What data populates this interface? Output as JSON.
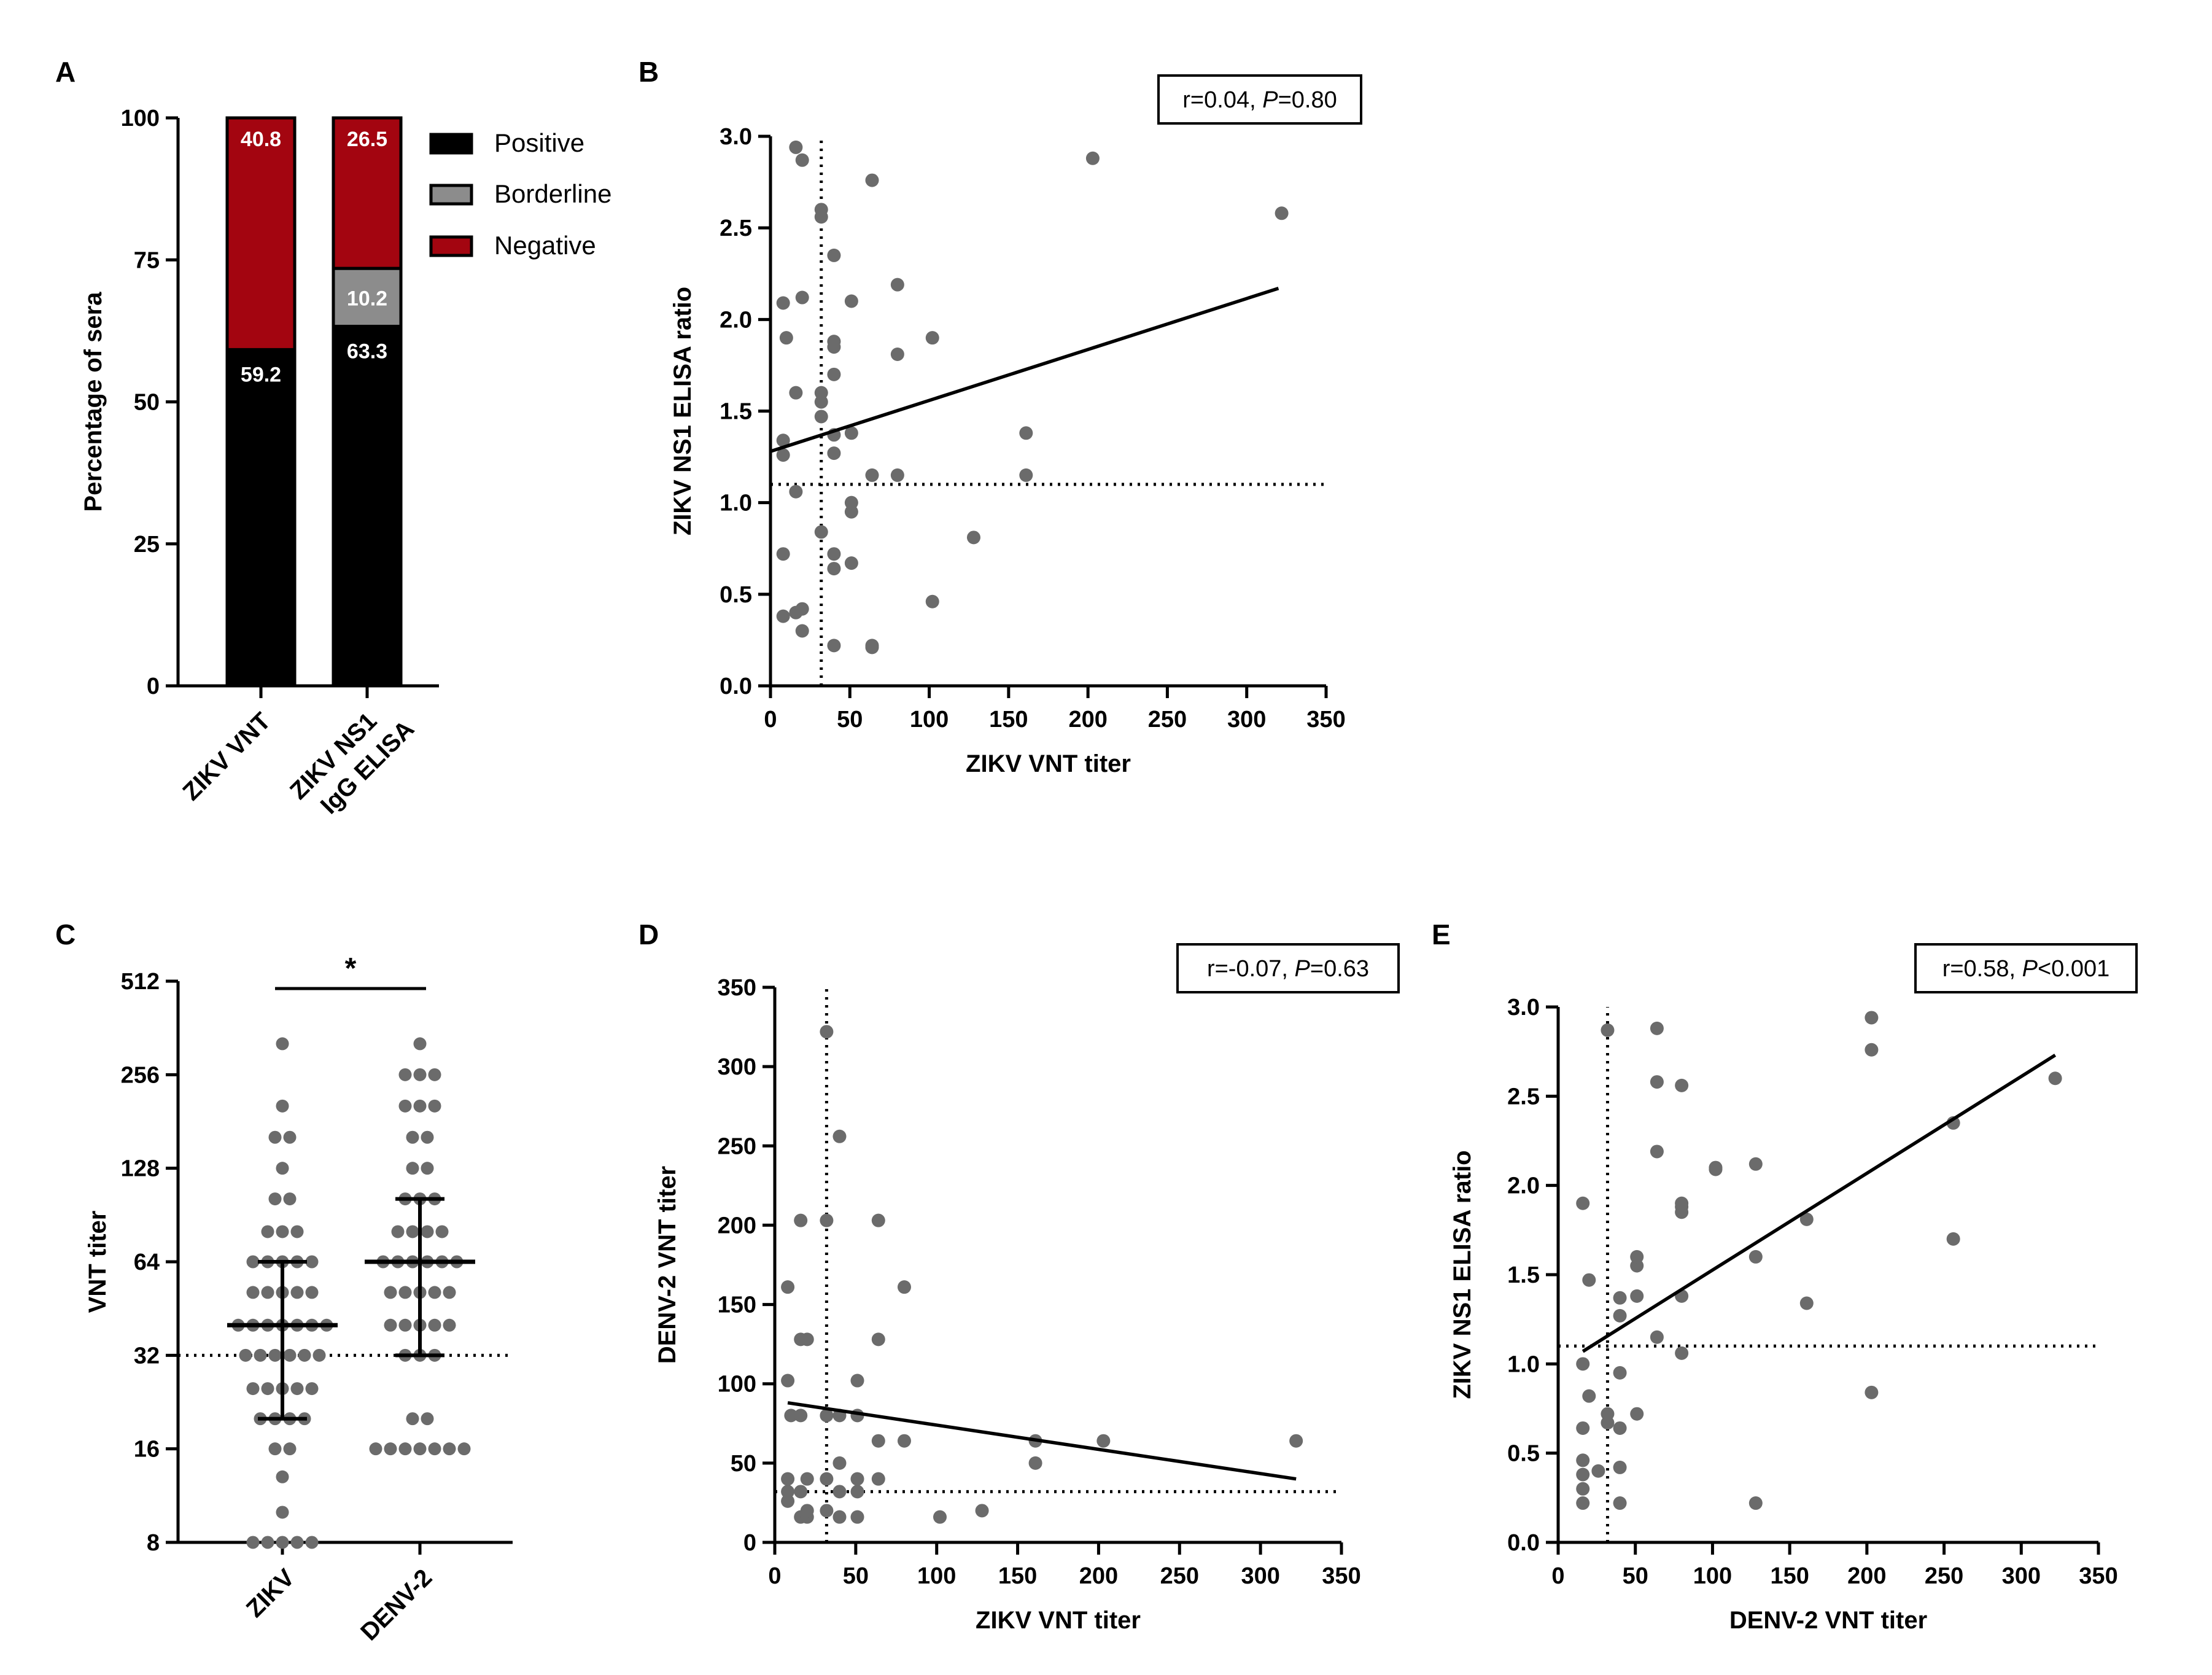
{
  "colors": {
    "positive": "#000000",
    "borderline": "#8c8c8c",
    "negative": "#a30510",
    "point": "#6b6b6b",
    "line": "#000000"
  },
  "chart_data": [
    {
      "panel": "A",
      "type": "bar",
      "stacked": true,
      "categories": [
        "ZIKV VNT",
        "ZIKV NS1 IgG ELISA"
      ],
      "category_lines": [
        [
          "ZIKV VNT"
        ],
        [
          "ZIKV NS1",
          "IgG ELISA"
        ]
      ],
      "series": [
        {
          "name": "Positive",
          "color_key": "positive",
          "values": [
            59.2,
            63.3
          ],
          "labels": [
            "59.2",
            "63.3"
          ]
        },
        {
          "name": "Borderline",
          "color_key": "borderline",
          "values": [
            0,
            10.2
          ],
          "labels": [
            "",
            "10.2"
          ]
        },
        {
          "name": "Negative",
          "color_key": "negative",
          "values": [
            40.8,
            26.5
          ],
          "labels": [
            "40.8",
            "26.5"
          ]
        }
      ],
      "ylabel": "Percentage of sera",
      "ylim": [
        0,
        100
      ],
      "yticks": [
        0,
        25,
        50,
        75,
        100
      ],
      "legend": [
        "Positive",
        "Borderline",
        "Negative"
      ]
    },
    {
      "panel": "B",
      "type": "scatter",
      "xlabel": "ZIKV VNT titer",
      "ylabel": "ZIKV NS1 ELISA ratio",
      "xlim": [
        0,
        350
      ],
      "ylim": [
        0,
        3.0
      ],
      "xticks": [
        0,
        50,
        100,
        150,
        200,
        250,
        300,
        350
      ],
      "yticks": [
        "0.0",
        "0.5",
        "1.0",
        "1.5",
        "2.0",
        "2.5",
        "3.0"
      ],
      "stat": {
        "prefix": "r=0.04, ",
        "italic": "P",
        "suffix": "=0.80"
      },
      "regression": [
        [
          0,
          1.28
        ],
        [
          320,
          2.17
        ]
      ],
      "cutoff_x": 32,
      "cutoff_y": 1.1,
      "points": [
        [
          8,
          0.38
        ],
        [
          8,
          0.72
        ],
        [
          8,
          1.26
        ],
        [
          8,
          1.34
        ],
        [
          8,
          2.09
        ],
        [
          10,
          1.9
        ],
        [
          16,
          0.4
        ],
        [
          16,
          1.06
        ],
        [
          16,
          1.6
        ],
        [
          16,
          2.94
        ],
        [
          20,
          0.3
        ],
        [
          20,
          0.42
        ],
        [
          20,
          2.12
        ],
        [
          20,
          2.87
        ],
        [
          32,
          0.84
        ],
        [
          32,
          1.47
        ],
        [
          32,
          1.55
        ],
        [
          32,
          1.6
        ],
        [
          32,
          2.56
        ],
        [
          32,
          2.6
        ],
        [
          40,
          0.22
        ],
        [
          40,
          0.64
        ],
        [
          40,
          0.72
        ],
        [
          40,
          1.27
        ],
        [
          40,
          1.37
        ],
        [
          40,
          1.7
        ],
        [
          40,
          1.85
        ],
        [
          40,
          1.88
        ],
        [
          40,
          2.35
        ],
        [
          51,
          0.67
        ],
        [
          51,
          0.95
        ],
        [
          51,
          1.0
        ],
        [
          51,
          1.38
        ],
        [
          51,
          2.1
        ],
        [
          64,
          0.21
        ],
        [
          64,
          0.22
        ],
        [
          64,
          1.15
        ],
        [
          64,
          2.76
        ],
        [
          80,
          1.15
        ],
        [
          80,
          1.81
        ],
        [
          80,
          2.19
        ],
        [
          102,
          0.46
        ],
        [
          102,
          1.9
        ],
        [
          128,
          0.81
        ],
        [
          161,
          1.15
        ],
        [
          161,
          1.38
        ],
        [
          203,
          2.88
        ],
        [
          322,
          2.58
        ]
      ]
    },
    {
      "panel": "C",
      "type": "scatter",
      "subtype": "dot-plot",
      "categories": [
        "ZIKV",
        "DENV-2"
      ],
      "ylabel": "VNT titer",
      "yscale": "log2",
      "ylim": [
        8,
        512
      ],
      "yticks": [
        "8",
        "16",
        "32",
        "64",
        "128",
        "256",
        "512"
      ],
      "cutoff_y": 32,
      "significance": "*",
      "groups": [
        {
          "name": "ZIKV",
          "median": 40,
          "q1": 20,
          "q3": 64,
          "counts": [
            [
              8,
              5
            ],
            [
              10,
              1
            ],
            [
              13,
              1
            ],
            [
              16,
              2
            ],
            [
              20,
              4
            ],
            [
              25,
              5
            ],
            [
              32,
              6
            ],
            [
              40,
              7
            ],
            [
              51,
              5
            ],
            [
              64,
              5
            ],
            [
              80,
              3
            ],
            [
              102,
              2
            ],
            [
              128,
              1
            ],
            [
              161,
              2
            ],
            [
              203,
              1
            ],
            [
              322,
              1
            ]
          ]
        },
        {
          "name": "DENV-2",
          "median": 64,
          "q1": 32,
          "q3": 102,
          "counts": [
            [
              16,
              7
            ],
            [
              20,
              2
            ],
            [
              32,
              3
            ],
            [
              40,
              5
            ],
            [
              51,
              5
            ],
            [
              64,
              6
            ],
            [
              80,
              4
            ],
            [
              102,
              3
            ],
            [
              128,
              2
            ],
            [
              161,
              2
            ],
            [
              203,
              3
            ],
            [
              256,
              3
            ],
            [
              322,
              1
            ]
          ]
        }
      ]
    },
    {
      "panel": "D",
      "type": "scatter",
      "xlabel": "ZIKV VNT titer",
      "ylabel": "DENV-2 VNT titer",
      "xlim": [
        0,
        350
      ],
      "ylim": [
        0,
        350
      ],
      "xticks": [
        0,
        50,
        100,
        150,
        200,
        250,
        300,
        350
      ],
      "yticks": [
        "0",
        "50",
        "100",
        "150",
        "200",
        "250",
        "300",
        "350"
      ],
      "stat": {
        "prefix": "r=-0.07, ",
        "italic": "P",
        "suffix": "=0.63"
      },
      "regression": [
        [
          8,
          88
        ],
        [
          322,
          40
        ]
      ],
      "cutoff_x": 32,
      "cutoff_y": 32,
      "points": [
        [
          8,
          26
        ],
        [
          8,
          32
        ],
        [
          8,
          40
        ],
        [
          8,
          102
        ],
        [
          8,
          161
        ],
        [
          10,
          80
        ],
        [
          16,
          16
        ],
        [
          16,
          32
        ],
        [
          16,
          80
        ],
        [
          16,
          128
        ],
        [
          16,
          203
        ],
        [
          20,
          16
        ],
        [
          20,
          20
        ],
        [
          20,
          40
        ],
        [
          20,
          128
        ],
        [
          32,
          20
        ],
        [
          32,
          40
        ],
        [
          32,
          80
        ],
        [
          32,
          203
        ],
        [
          32,
          322
        ],
        [
          40,
          16
        ],
        [
          40,
          32
        ],
        [
          40,
          50
        ],
        [
          40,
          80
        ],
        [
          40,
          256
        ],
        [
          51,
          16
        ],
        [
          51,
          32
        ],
        [
          51,
          40
        ],
        [
          51,
          80
        ],
        [
          51,
          102
        ],
        [
          64,
          40
        ],
        [
          64,
          64
        ],
        [
          64,
          128
        ],
        [
          64,
          203
        ],
        [
          80,
          64
        ],
        [
          80,
          161
        ],
        [
          102,
          16
        ],
        [
          128,
          20
        ],
        [
          161,
          50
        ],
        [
          161,
          64
        ],
        [
          203,
          64
        ],
        [
          322,
          64
        ]
      ]
    },
    {
      "panel": "E",
      "type": "scatter",
      "xlabel": "DENV-2 VNT titer",
      "ylabel": "ZIKV NS1 ELISA ratio",
      "xlim": [
        0,
        350
      ],
      "ylim": [
        0,
        3.0
      ],
      "xticks": [
        0,
        50,
        100,
        150,
        200,
        250,
        300,
        350
      ],
      "yticks": [
        "0.0",
        "0.5",
        "1.0",
        "1.5",
        "2.0",
        "2.5",
        "3.0"
      ],
      "stat": {
        "prefix": "r=0.58, ",
        "italic": "P",
        "suffix": "<0.001"
      },
      "regression": [
        [
          16,
          1.07
        ],
        [
          322,
          2.73
        ]
      ],
      "cutoff_x": 32,
      "cutoff_y": 1.1,
      "points": [
        [
          16,
          0.22
        ],
        [
          16,
          0.3
        ],
        [
          16,
          0.38
        ],
        [
          16,
          0.46
        ],
        [
          16,
          0.64
        ],
        [
          16,
          1.0
        ],
        [
          16,
          1.9
        ],
        [
          20,
          0.82
        ],
        [
          20,
          1.47
        ],
        [
          26,
          0.4
        ],
        [
          32,
          0.67
        ],
        [
          32,
          0.72
        ],
        [
          32,
          2.87
        ],
        [
          40,
          0.22
        ],
        [
          40,
          0.42
        ],
        [
          40,
          0.64
        ],
        [
          40,
          0.95
        ],
        [
          40,
          1.27
        ],
        [
          40,
          1.37
        ],
        [
          51,
          0.72
        ],
        [
          51,
          1.38
        ],
        [
          51,
          1.55
        ],
        [
          51,
          1.6
        ],
        [
          64,
          1.15
        ],
        [
          64,
          2.19
        ],
        [
          64,
          2.58
        ],
        [
          64,
          2.88
        ],
        [
          80,
          1.06
        ],
        [
          80,
          1.38
        ],
        [
          80,
          1.85
        ],
        [
          80,
          1.88
        ],
        [
          80,
          1.9
        ],
        [
          80,
          2.56
        ],
        [
          102,
          2.09
        ],
        [
          102,
          2.1
        ],
        [
          128,
          0.22
        ],
        [
          128,
          1.6
        ],
        [
          128,
          2.12
        ],
        [
          161,
          1.34
        ],
        [
          161,
          1.81
        ],
        [
          203,
          0.84
        ],
        [
          203,
          2.76
        ],
        [
          203,
          2.94
        ],
        [
          256,
          1.7
        ],
        [
          256,
          2.35
        ],
        [
          322,
          2.6
        ]
      ]
    }
  ]
}
